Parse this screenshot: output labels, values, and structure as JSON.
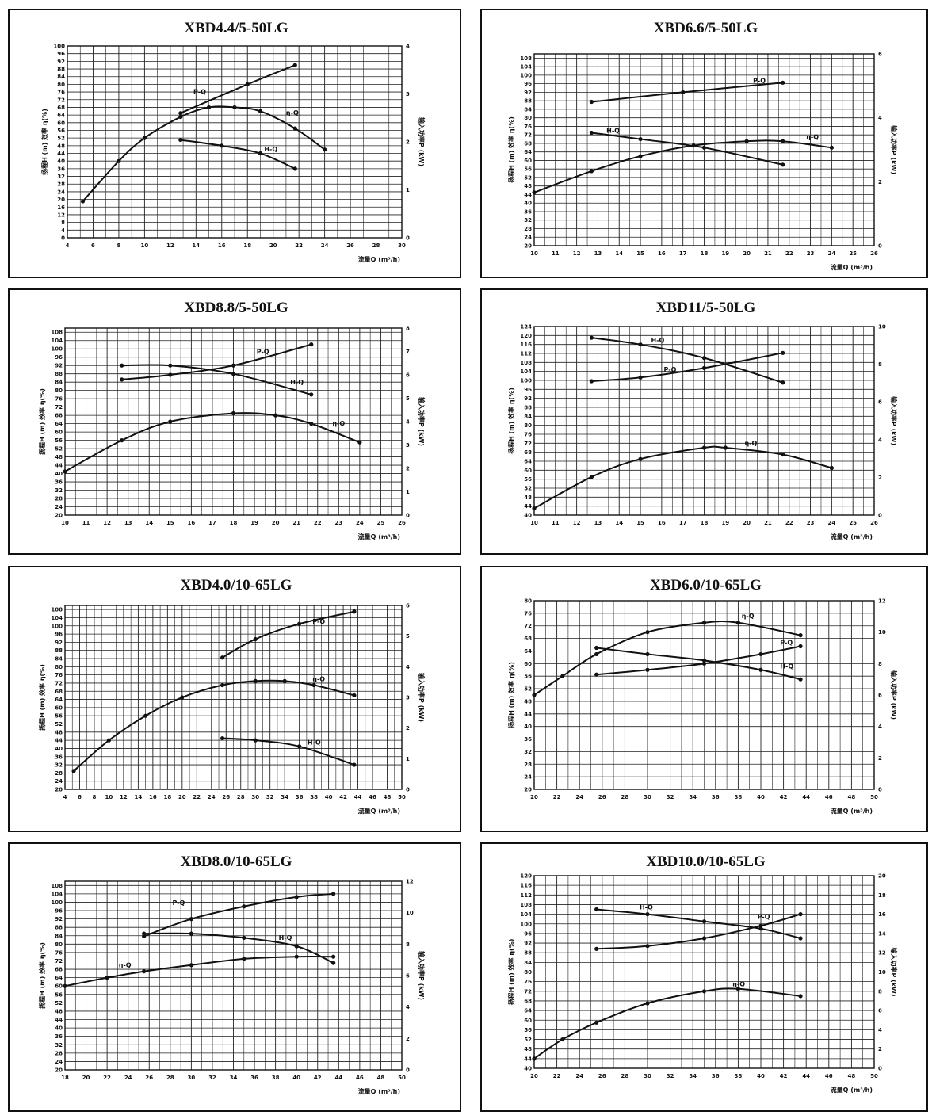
{
  "chart_data": [
    {
      "type": "line",
      "title": "XBD4.4/5-50LG",
      "xlabel": "流量Q (m³/h)",
      "ylabel": "扬程H (m)  效率 η(%)",
      "y2label": "输入功率P (kW)",
      "xlim": [
        4,
        30
      ],
      "ylim": [
        0,
        100
      ],
      "y2lim": [
        0,
        4
      ],
      "xticks": [
        "4",
        "6",
        "8",
        "10",
        "12",
        "14",
        "16",
        "18",
        "20",
        "22",
        "24",
        "26",
        "28",
        "30"
      ],
      "yticks": [
        "0",
        "4",
        "8",
        "12",
        "16",
        "20",
        "24",
        "28",
        "32",
        "36",
        "40",
        "44",
        "48",
        "52",
        "56",
        "60",
        "64",
        "68",
        "72",
        "76",
        "80",
        "84",
        "88",
        "92",
        "96",
        "100"
      ],
      "y2ticks": [
        "0",
        "1",
        "2",
        "3",
        "4"
      ],
      "grid": true,
      "series": [
        {
          "name": "P-Q",
          "axis": "right",
          "x": [
            12.8,
            18,
            21.7
          ],
          "y": [
            2.6,
            3.2,
            3.6
          ],
          "label_at": [
            13.8,
            3.0
          ]
        },
        {
          "name": "η-Q",
          "axis": "left",
          "x": [
            5.2,
            8,
            10,
            12.8,
            15,
            17,
            19,
            21.7,
            24
          ],
          "y": [
            19,
            40,
            52,
            63,
            68,
            68,
            66,
            57,
            46
          ],
          "label_at": [
            21,
            64
          ]
        },
        {
          "name": "H-Q",
          "axis": "left",
          "x": [
            12.8,
            16,
            19,
            21.7
          ],
          "y": [
            51,
            48,
            44,
            36
          ],
          "label_at": [
            19.3,
            45
          ]
        }
      ]
    },
    {
      "type": "line",
      "title": "XBD6.6/5-50LG",
      "xlabel": "流量Q (m³/h)",
      "ylabel": "扬程H (m)  效率 η(%)",
      "y2label": "输入功率P (kW)",
      "xlim": [
        10,
        26
      ],
      "ylim": [
        20,
        110
      ],
      "y2lim": [
        0,
        6
      ],
      "xticks": [
        "10",
        "11",
        "12",
        "13",
        "14",
        "15",
        "16",
        "17",
        "18",
        "19",
        "20",
        "21",
        "22",
        "23",
        "24",
        "25",
        "26"
      ],
      "yticks": [
        "20",
        "24",
        "28",
        "32",
        "36",
        "40",
        "44",
        "48",
        "52",
        "56",
        "60",
        "64",
        "68",
        "72",
        "76",
        "80",
        "84",
        "88",
        "92",
        "96",
        "100",
        "104",
        "108"
      ],
      "y2ticks": [
        "0",
        "2",
        "4",
        "6"
      ],
      "grid": true,
      "series": [
        {
          "name": "P-Q",
          "axis": "right",
          "x": [
            12.7,
            17,
            21.7
          ],
          "y": [
            4.5,
            4.8,
            5.1
          ],
          "label_at": [
            20.3,
            5.1
          ]
        },
        {
          "name": "H-Q",
          "axis": "left",
          "x": [
            12.7,
            15,
            18,
            21.7
          ],
          "y": [
            73,
            70,
            66,
            58
          ],
          "label_at": [
            13.4,
            73
          ]
        },
        {
          "name": "η-Q",
          "axis": "left",
          "x": [
            10,
            12.7,
            15,
            17.5,
            20,
            21.7,
            24
          ],
          "y": [
            45,
            55,
            62,
            67,
            69,
            69,
            66
          ],
          "label_at": [
            22.8,
            70
          ]
        }
      ]
    },
    {
      "type": "line",
      "title": "XBD8.8/5-50LG",
      "xlabel": "流量Q (m³/h)",
      "ylabel": "扬程H (m)  效率 η(%)",
      "y2label": "输入功率P (kW)",
      "xlim": [
        10,
        26
      ],
      "ylim": [
        20,
        110
      ],
      "y2lim": [
        0,
        8
      ],
      "xticks": [
        "10",
        "11",
        "12",
        "13",
        "14",
        "15",
        "16",
        "17",
        "18",
        "19",
        "20",
        "21",
        "22",
        "23",
        "24",
        "25",
        "26"
      ],
      "yticks": [
        "20",
        "24",
        "28",
        "32",
        "36",
        "40",
        "44",
        "48",
        "52",
        "56",
        "60",
        "64",
        "68",
        "72",
        "76",
        "80",
        "84",
        "88",
        "92",
        "96",
        "100",
        "104",
        "108"
      ],
      "y2ticks": [
        "0",
        "1",
        "2",
        "3",
        "4",
        "5",
        "6",
        "7",
        "8"
      ],
      "grid": true,
      "series": [
        {
          "name": "P-Q",
          "axis": "right",
          "x": [
            12.7,
            15,
            18,
            21.7
          ],
          "y": [
            5.8,
            6.0,
            6.4,
            7.3
          ],
          "label_at": [
            19.1,
            6.9
          ]
        },
        {
          "name": "H-Q",
          "axis": "left",
          "x": [
            12.7,
            15,
            18,
            21.7
          ],
          "y": [
            92,
            92,
            88,
            78
          ],
          "label_at": [
            20.7,
            83
          ]
        },
        {
          "name": "η-Q",
          "axis": "left",
          "x": [
            10,
            12.7,
            15,
            18,
            20,
            21.7,
            24
          ],
          "y": [
            41,
            56,
            65,
            69,
            68,
            64,
            55
          ],
          "label_at": [
            22.7,
            63
          ]
        }
      ]
    },
    {
      "type": "line",
      "title": "XBD11/5-50LG",
      "xlabel": "流量Q (m³/h)",
      "ylabel": "扬程H (m)  效率 η(%)",
      "y2label": "输入功率P (kW)",
      "xlim": [
        10,
        26
      ],
      "ylim": [
        40,
        124
      ],
      "y2lim": [
        0,
        10
      ],
      "xticks": [
        "10",
        "11",
        "12",
        "13",
        "14",
        "15",
        "16",
        "17",
        "18",
        "19",
        "20",
        "21",
        "22",
        "23",
        "24",
        "25",
        "26"
      ],
      "yticks": [
        "40",
        "44",
        "48",
        "52",
        "56",
        "60",
        "64",
        "68",
        "72",
        "76",
        "80",
        "84",
        "88",
        "92",
        "96",
        "100",
        "104",
        "108",
        "112",
        "116",
        "120",
        "124"
      ],
      "y2ticks": [
        "0",
        "2",
        "4",
        "6",
        "8",
        "10"
      ],
      "grid": true,
      "series": [
        {
          "name": "H-Q",
          "axis": "left",
          "x": [
            12.7,
            15,
            18,
            21.7
          ],
          "y": [
            119,
            116,
            110,
            99
          ],
          "label_at": [
            15.5,
            117
          ]
        },
        {
          "name": "P-Q",
          "axis": "right",
          "x": [
            12.7,
            15,
            18,
            21.7
          ],
          "y": [
            7.1,
            7.3,
            7.8,
            8.6
          ],
          "label_at": [
            16.1,
            7.6
          ]
        },
        {
          "name": "η-Q",
          "axis": "left",
          "x": [
            10,
            12.7,
            15,
            18,
            19,
            21.7,
            24
          ],
          "y": [
            43,
            57,
            65,
            70,
            70,
            67,
            61
          ],
          "label_at": [
            19.9,
            71
          ]
        }
      ]
    },
    {
      "type": "line",
      "title": "XBD4.0/10-65LG",
      "xlabel": "流量Q (m³/h)",
      "ylabel": "扬程H (m)  效率 η(%)",
      "y2label": "输入功率P (kW)",
      "xlim": [
        4,
        50
      ],
      "ylim": [
        20,
        110
      ],
      "y2lim": [
        0,
        6
      ],
      "xticks": [
        "4",
        "6",
        "8",
        "10",
        "12",
        "14",
        "16",
        "18",
        "20",
        "22",
        "24",
        "26",
        "28",
        "30",
        "32",
        "34",
        "36",
        "38",
        "40",
        "42",
        "44",
        "46",
        "48",
        "50"
      ],
      "yticks": [
        "20",
        "24",
        "28",
        "32",
        "36",
        "40",
        "44",
        "48",
        "52",
        "56",
        "60",
        "64",
        "68",
        "72",
        "76",
        "80",
        "84",
        "88",
        "92",
        "96",
        "100",
        "104",
        "108"
      ],
      "y2ticks": [
        "0",
        "1",
        "2",
        "3",
        "4",
        "5",
        "6"
      ],
      "grid": true,
      "series": [
        {
          "name": "P-Q",
          "axis": "right",
          "x": [
            25.5,
            30,
            36,
            43.5
          ],
          "y": [
            4.3,
            4.9,
            5.4,
            5.8
          ],
          "label_at": [
            37.8,
            5.4
          ]
        },
        {
          "name": "η-Q",
          "axis": "left",
          "x": [
            5.2,
            10,
            15,
            20,
            25.5,
            30,
            34,
            38,
            43.5
          ],
          "y": [
            29,
            44,
            56,
            65,
            71,
            73,
            73,
            71,
            66
          ],
          "label_at": [
            37.8,
            73
          ]
        },
        {
          "name": "H-Q",
          "axis": "left",
          "x": [
            25.5,
            30,
            36,
            43.5
          ],
          "y": [
            45,
            44,
            41,
            32
          ],
          "label_at": [
            37.1,
            42
          ]
        }
      ]
    },
    {
      "type": "line",
      "title": "XBD6.0/10-65LG",
      "xlabel": "流量Q (m³/h)",
      "ylabel": "扬程H (m)  效率 η(%)",
      "y2label": "输入功率P (kW)",
      "xlim": [
        20,
        50
      ],
      "ylim": [
        20,
        80
      ],
      "y2lim": [
        0,
        12
      ],
      "xticks": [
        "20",
        "22",
        "24",
        "26",
        "28",
        "30",
        "32",
        "34",
        "36",
        "38",
        "40",
        "42",
        "44",
        "46",
        "48",
        "50"
      ],
      "yticks": [
        "20",
        "24",
        "28",
        "32",
        "36",
        "40",
        "44",
        "48",
        "52",
        "56",
        "60",
        "64",
        "68",
        "72",
        "76",
        "80"
      ],
      "y2ticks": [
        "0",
        "2",
        "4",
        "6",
        "8",
        "10",
        "12"
      ],
      "grid": true,
      "series": [
        {
          "name": "η-Q",
          "axis": "left",
          "x": [
            20,
            22.5,
            25.5,
            30,
            35,
            38,
            43.5
          ],
          "y": [
            50,
            56,
            63,
            70,
            73,
            73,
            69
          ],
          "label_at": [
            38.3,
            74.5
          ]
        },
        {
          "name": "P-Q",
          "axis": "right",
          "x": [
            25.5,
            30,
            35,
            40,
            43.5
          ],
          "y": [
            7.3,
            7.6,
            8.0,
            8.6,
            9.1
          ],
          "label_at": [
            41.7,
            9.2
          ]
        },
        {
          "name": "H-Q",
          "axis": "left",
          "x": [
            25.5,
            30,
            35,
            40,
            43.5
          ],
          "y": [
            65,
            63,
            61,
            58,
            55
          ],
          "label_at": [
            41.7,
            58.5
          ]
        }
      ]
    },
    {
      "type": "line",
      "title": "XBD8.0/10-65LG",
      "xlabel": "流量Q (m³/h)",
      "ylabel": "扬程H (m)  效率 η(%)",
      "y2label": "输入功率P (kW)",
      "xlim": [
        18,
        50
      ],
      "ylim": [
        20,
        110
      ],
      "y2lim": [
        0,
        12
      ],
      "xticks": [
        "18",
        "20",
        "22",
        "24",
        "26",
        "28",
        "30",
        "32",
        "34",
        "36",
        "38",
        "40",
        "42",
        "44",
        "46",
        "48",
        "50"
      ],
      "yticks": [
        "20",
        "24",
        "28",
        "32",
        "36",
        "40",
        "44",
        "48",
        "52",
        "56",
        "60",
        "64",
        "68",
        "72",
        "76",
        "80",
        "84",
        "88",
        "92",
        "96",
        "100",
        "104",
        "108"
      ],
      "y2ticks": [
        "0",
        "2",
        "4",
        "6",
        "8",
        "10",
        "12"
      ],
      "grid": true,
      "series": [
        {
          "name": "P-Q",
          "axis": "right",
          "x": [
            25.5,
            30,
            35,
            40,
            43.5
          ],
          "y": [
            8.5,
            9.6,
            10.4,
            11.0,
            11.2
          ],
          "label_at": [
            28.2,
            10.5
          ]
        },
        {
          "name": "H-Q",
          "axis": "left",
          "x": [
            25.5,
            30,
            35,
            40,
            43.5
          ],
          "y": [
            85,
            85,
            83,
            79,
            71
          ],
          "label_at": [
            38.3,
            82
          ]
        },
        {
          "name": "η-Q",
          "axis": "left",
          "x": [
            18,
            22,
            25.5,
            30,
            35,
            40,
            43.5
          ],
          "y": [
            60,
            64,
            67,
            70,
            73,
            74,
            74
          ],
          "label_at": [
            23.1,
            69
          ]
        }
      ]
    },
    {
      "type": "line",
      "title": "XBD10.0/10-65LG",
      "xlabel": "流量Q (m³/h)",
      "ylabel": "扬程H (m)  效率 η(%)",
      "y2label": "输入功率P (kW)",
      "xlim": [
        20,
        50
      ],
      "ylim": [
        40,
        120
      ],
      "y2lim": [
        0,
        20
      ],
      "xticks": [
        "20",
        "22",
        "24",
        "26",
        "28",
        "30",
        "32",
        "34",
        "36",
        "38",
        "40",
        "42",
        "44",
        "46",
        "48",
        "50"
      ],
      "yticks": [
        "40",
        "44",
        "48",
        "52",
        "56",
        "60",
        "64",
        "68",
        "72",
        "76",
        "80",
        "84",
        "88",
        "92",
        "96",
        "100",
        "104",
        "108",
        "112",
        "116",
        "120"
      ],
      "y2ticks": [
        "0",
        "2",
        "4",
        "6",
        "8",
        "10",
        "12",
        "14",
        "16",
        "18",
        "20"
      ],
      "grid": true,
      "series": [
        {
          "name": "H-Q",
          "axis": "left",
          "x": [
            25.5,
            30,
            35,
            40,
            43.5
          ],
          "y": [
            106,
            104,
            101,
            98,
            94
          ],
          "label_at": [
            29.3,
            106
          ]
        },
        {
          "name": "P-Q",
          "axis": "right",
          "x": [
            25.5,
            30,
            35,
            40,
            43.5
          ],
          "y": [
            12.4,
            12.7,
            13.5,
            14.8,
            16.0
          ],
          "label_at": [
            39.7,
            15.5
          ]
        },
        {
          "name": "η-Q",
          "axis": "left",
          "x": [
            20,
            22.5,
            25.5,
            30,
            35,
            38,
            43.5
          ],
          "y": [
            44,
            52,
            59,
            67,
            72,
            73,
            70
          ],
          "label_at": [
            37.5,
            74
          ]
        }
      ]
    }
  ]
}
